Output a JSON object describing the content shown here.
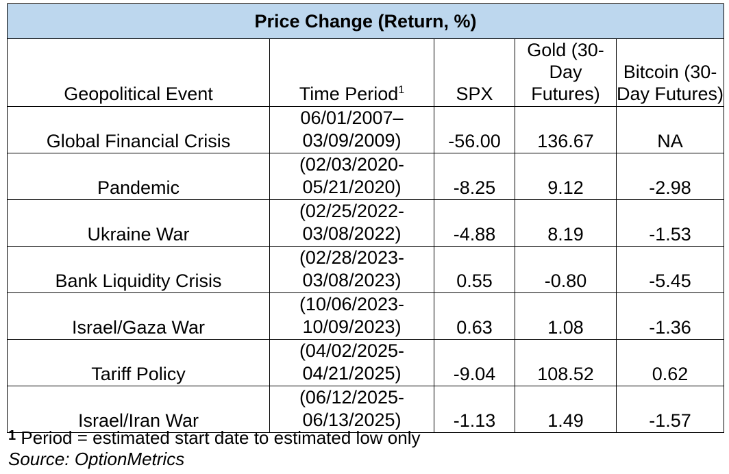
{
  "chart_data": {
    "type": "table",
    "title": "Price Change (Return, %)",
    "columns": [
      {
        "label": "Geopolitical Event",
        "footnote": ""
      },
      {
        "label": "Time Period",
        "footnote": "1"
      },
      {
        "label": "SPX",
        "footnote": ""
      },
      {
        "label": "Gold (30-Day Futures)",
        "footnote": ""
      },
      {
        "label": "Bitcoin (30-Day Futures)",
        "footnote": ""
      }
    ],
    "rows": [
      {
        "event": "Global Financial Crisis",
        "period_start": "06/01/2007–",
        "period_end": "03/09/2009)",
        "spx": "-56.00",
        "gold": "136.67",
        "bitcoin": "NA"
      },
      {
        "event": "Pandemic",
        "period_start": "(02/03/2020-",
        "period_end": "05/21/2020)",
        "spx": "-8.25",
        "gold": "9.12",
        "bitcoin": "-2.98"
      },
      {
        "event": "Ukraine War",
        "period_start": "(02/25/2022-",
        "period_end": "03/08/2022)",
        "spx": "-4.88",
        "gold": "8.19",
        "bitcoin": "-1.53"
      },
      {
        "event": "Bank Liquidity Crisis",
        "period_start": "(02/28/2023-",
        "period_end": "03/08/2023)",
        "spx": "0.55",
        "gold": "-0.80",
        "bitcoin": "-5.45"
      },
      {
        "event": "Israel/Gaza War",
        "period_start": "(10/06/2023-",
        "period_end": "10/09/2023)",
        "spx": "0.63",
        "gold": "1.08",
        "bitcoin": "-1.36"
      },
      {
        "event": "Tariff Policy",
        "period_start": "(04/02/2025-",
        "period_end": "04/21/2025)",
        "spx": "-9.04",
        "gold": "108.52",
        "bitcoin": "0.62"
      },
      {
        "event": "Israel/Iran War",
        "period_start": "(06/12/2025-",
        "period_end": "06/13/2025)",
        "spx": "-1.13",
        "gold": "1.49",
        "bitcoin": "-1.57"
      }
    ],
    "footnote": {
      "mark": "1",
      "text": " Period = estimated start date to estimated low only"
    },
    "source": "Source: OptionMetrics",
    "colors": {
      "title_fill": "#bdd7ee",
      "border": "#000000"
    }
  }
}
